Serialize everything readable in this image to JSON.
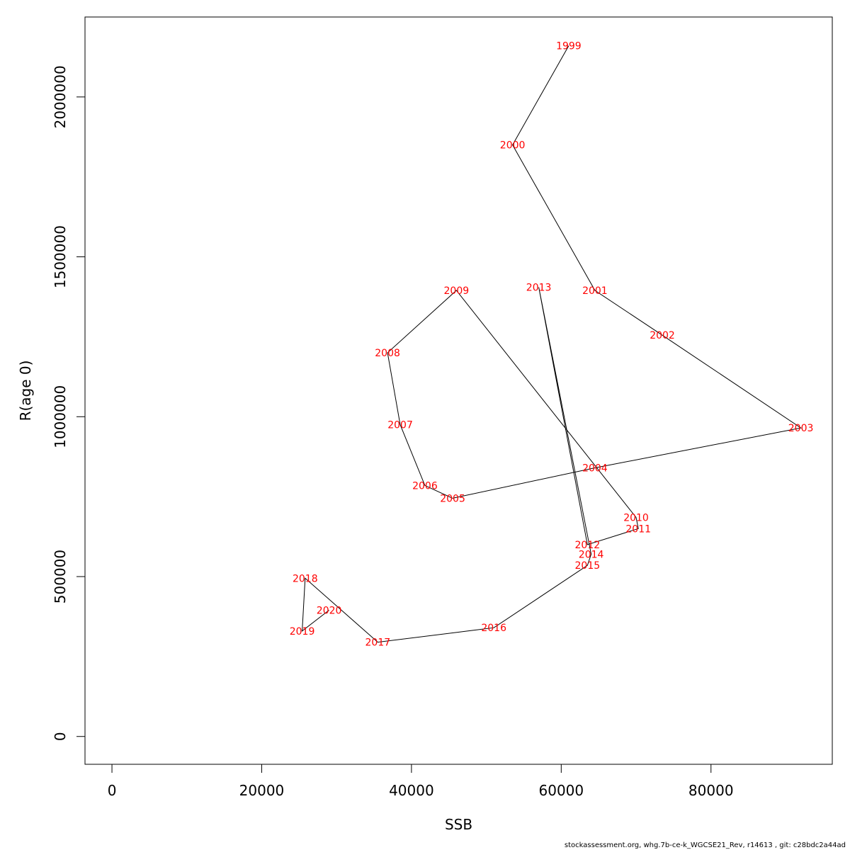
{
  "chart_data": {
    "type": "line",
    "xlabel": "SSB",
    "ylabel": "R(age 0)",
    "xlim": [
      -3600,
      96200
    ],
    "ylim": [
      -87000,
      2250000
    ],
    "xticks": [
      0,
      20000,
      40000,
      60000,
      80000
    ],
    "yticks": [
      0,
      500000,
      1000000,
      1500000,
      2000000
    ],
    "grid": false,
    "colors": {
      "path": "#000000",
      "labels": "#ff0000"
    },
    "points": [
      {
        "label": "1999",
        "x": 61000,
        "y": 2160000
      },
      {
        "label": "2000",
        "x": 53500,
        "y": 1850000
      },
      {
        "label": "2001",
        "x": 64500,
        "y": 1395000
      },
      {
        "label": "2002",
        "x": 73500,
        "y": 1255000
      },
      {
        "label": "2003",
        "x": 92000,
        "y": 965000
      },
      {
        "label": "2004",
        "x": 64500,
        "y": 840000
      },
      {
        "label": "2005",
        "x": 45500,
        "y": 745000
      },
      {
        "label": "2006",
        "x": 41800,
        "y": 785000
      },
      {
        "label": "2007",
        "x": 38500,
        "y": 975000
      },
      {
        "label": "2008",
        "x": 36800,
        "y": 1200000
      },
      {
        "label": "2009",
        "x": 46000,
        "y": 1395000
      },
      {
        "label": "2010",
        "x": 70000,
        "y": 685000
      },
      {
        "label": "2011",
        "x": 70300,
        "y": 650000
      },
      {
        "label": "2012",
        "x": 63500,
        "y": 600000
      },
      {
        "label": "2013",
        "x": 57000,
        "y": 1405000
      },
      {
        "label": "2014",
        "x": 64000,
        "y": 570000
      },
      {
        "label": "2015",
        "x": 63500,
        "y": 535000
      },
      {
        "label": "2016",
        "x": 51000,
        "y": 340000
      },
      {
        "label": "2017",
        "x": 35500,
        "y": 295000
      },
      {
        "label": "2018",
        "x": 25800,
        "y": 495000
      },
      {
        "label": "2019",
        "x": 25400,
        "y": 330000
      },
      {
        "label": "2020",
        "x": 29000,
        "y": 395000
      }
    ]
  },
  "footer": "stockassessment.org, whg.7b-ce-k_WGCSE21_Rev, r14613 , git: c28bdc2a44ad"
}
